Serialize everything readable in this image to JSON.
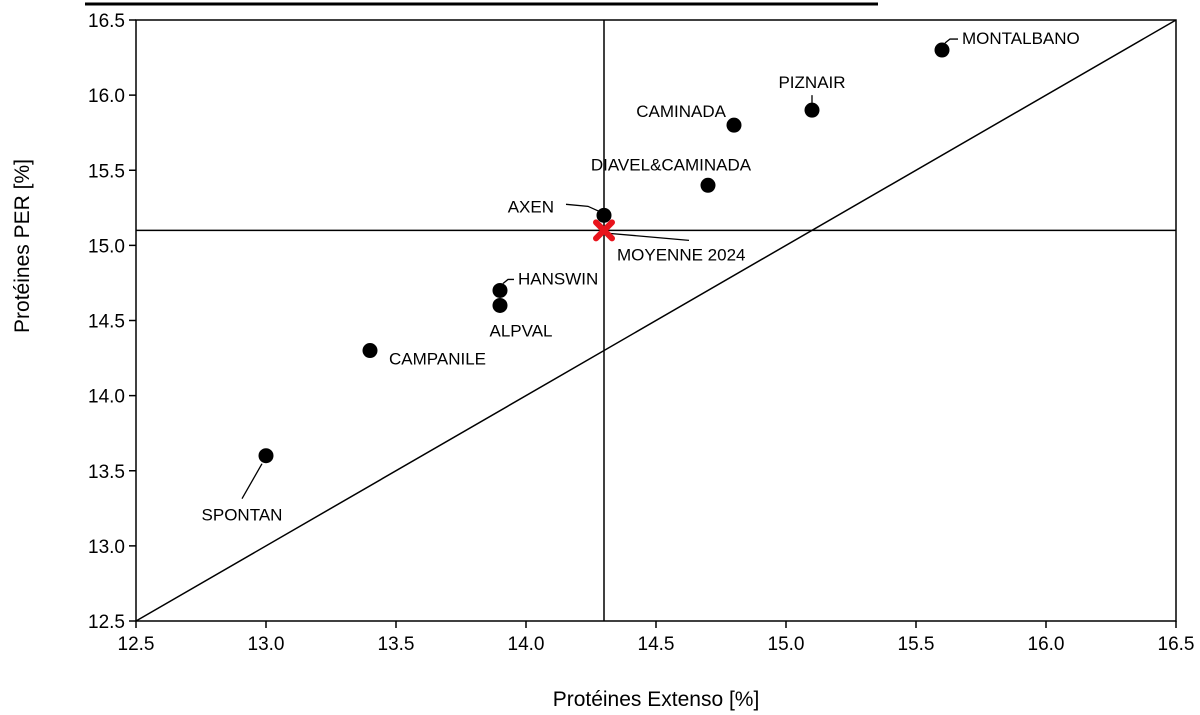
{
  "chart_data": {
    "type": "scatter",
    "title": "",
    "xlabel": "Protéines Extenso [%]",
    "ylabel": "Protéines PER [%]",
    "xlim": [
      12.5,
      16.5
    ],
    "ylim": [
      12.5,
      16.5
    ],
    "x_ticks": [
      "12.5",
      "13.0",
      "13.5",
      "14.0",
      "14.5",
      "15.0",
      "15.5",
      "16.0",
      "16.5"
    ],
    "y_ticks": [
      "12.5",
      "13.0",
      "13.5",
      "14.0",
      "14.5",
      "15.0",
      "15.5",
      "16.0",
      "16.5"
    ],
    "grid": false,
    "diagonal_line": true,
    "reference_lines": {
      "x": 14.3,
      "y": 15.1
    },
    "colors": {
      "points": "#000000",
      "mean_marker": "#e8141c",
      "lines": "#000000"
    },
    "points": [
      {
        "name": "MONTALBANO",
        "x": 15.6,
        "y": 16.3
      },
      {
        "name": "PIZNAIR",
        "x": 15.1,
        "y": 15.9
      },
      {
        "name": "CAMINADA",
        "x": 14.8,
        "y": 15.8
      },
      {
        "name": "DIAVEL&CAMINADA",
        "x": 14.7,
        "y": 15.4
      },
      {
        "name": "AXEN",
        "x": 14.3,
        "y": 15.2
      },
      {
        "name": "HANSWIN",
        "x": 13.9,
        "y": 14.7
      },
      {
        "name": "ALPVAL",
        "x": 13.9,
        "y": 14.6
      },
      {
        "name": "CAMPANILE",
        "x": 13.4,
        "y": 14.3
      },
      {
        "name": "SPONTAN",
        "x": 13.0,
        "y": 13.6
      }
    ],
    "mean": {
      "name": "MOYENNE 2024",
      "x": 14.3,
      "y": 15.1
    }
  }
}
